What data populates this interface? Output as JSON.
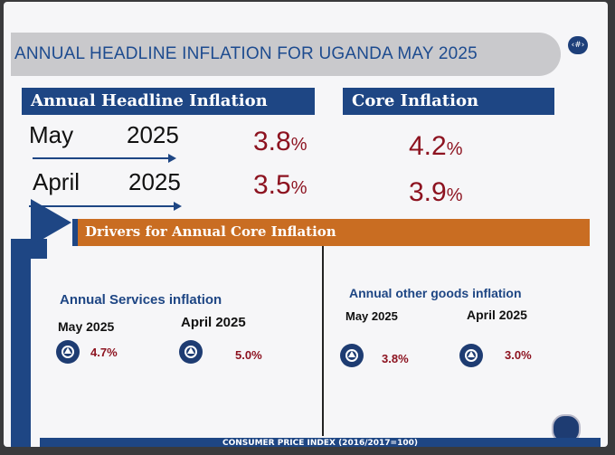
{
  "title": "ANNUAL HEADLINE INFLATION FOR UGANDA MAY 2025",
  "page_marker": "‹#›",
  "headline": {
    "header": "Annual Headline Inflation",
    "rows": [
      {
        "month": "May",
        "year": "2025",
        "value": "3.8",
        "unit": "%"
      },
      {
        "month": "April",
        "year": "2025",
        "value": "3.5",
        "unit": "%"
      }
    ]
  },
  "core": {
    "header": "Core Inflation",
    "rows": [
      {
        "value": "4.2",
        "unit": "%"
      },
      {
        "value": "3.9",
        "unit": "%"
      }
    ]
  },
  "drivers": {
    "header": "Drivers for Annual Core Inflation",
    "services": {
      "title": "Annual Services inflation",
      "may_label": "May  2025",
      "may_value": "4.7%",
      "april_label": "April  2025",
      "april_value": "5.0%"
    },
    "other_goods": {
      "title": "Annual other goods inflation",
      "may_label": "May 2025",
      "may_value": "3.8%",
      "april_label": "April  2025",
      "april_value": "3.0%"
    }
  },
  "footer": "CONSUMER PRICE INDEX (2016/2017=100)",
  "icons": {
    "up_indicator": "up-arrow-circle-icon",
    "logo": "bank-seal-icon"
  },
  "colors": {
    "accent_blue": "#1e4684",
    "value_red": "#8d1320",
    "drivers_orange": "#c96d22"
  }
}
